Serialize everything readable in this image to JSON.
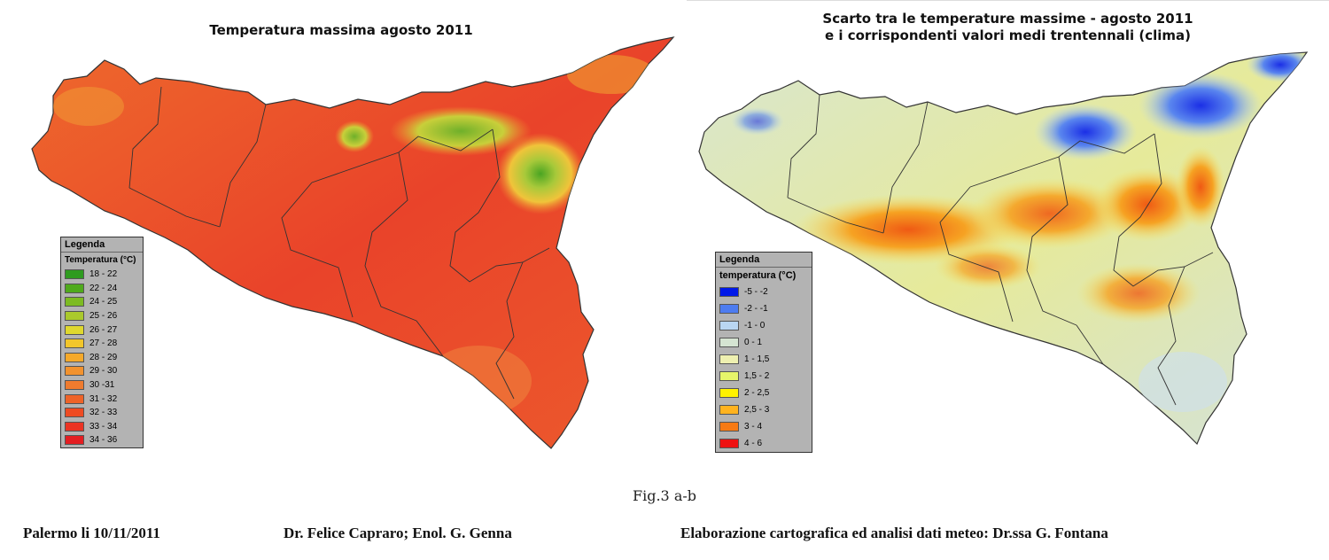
{
  "map_a": {
    "title": "Temperatura massima agosto 2011",
    "legend_title": "Legenda",
    "legend_subtitle": "Temperatura (°C)",
    "legend_items": [
      {
        "label": "18 - 22",
        "color": "#2e9b1f"
      },
      {
        "label": "22 - 24",
        "color": "#4faa1c"
      },
      {
        "label": "24 - 25",
        "color": "#7dbb22"
      },
      {
        "label": "25 - 26",
        "color": "#aac92c"
      },
      {
        "label": "26 - 27",
        "color": "#dfd82e"
      },
      {
        "label": "27 - 28",
        "color": "#f2c62b"
      },
      {
        "label": "28 - 29",
        "color": "#f5a92a"
      },
      {
        "label": "29 - 30",
        "color": "#f2922e"
      },
      {
        "label": "30 -31",
        "color": "#ef7b2e"
      },
      {
        "label": "31 - 32",
        "color": "#ee6328"
      },
      {
        "label": "32 - 33",
        "color": "#ee4b22"
      },
      {
        "label": "33 - 34",
        "color": "#eb3323"
      },
      {
        "label": "34 - 36",
        "color": "#e41e22"
      }
    ]
  },
  "map_b": {
    "title_line1": "Scarto tra le temperature massime - agosto 2011",
    "title_line2": "e i corrispondenti valori medi trentennali (clima)",
    "legend_title": "Legenda",
    "legend_subtitle": "temperatura (°C)",
    "legend_items": [
      {
        "label": "-5 - -2",
        "color": "#0018e8"
      },
      {
        "label": "-2 - -1",
        "color": "#4d7cf0"
      },
      {
        "label": "-1 - 0",
        "color": "#b9d6f2"
      },
      {
        "label": "0 - 1",
        "color": "#d5e4d2"
      },
      {
        "label": "1 - 1,5",
        "color": "#eef0b0"
      },
      {
        "label": "1,5 - 2",
        "color": "#e6f56a"
      },
      {
        "label": "2 - 2,5",
        "color": "#fff200"
      },
      {
        "label": "2,5 - 3",
        "color": "#ffb31f"
      },
      {
        "label": "3 - 4",
        "color": "#f77a13"
      },
      {
        "label": "4 - 6",
        "color": "#ee1111"
      }
    ]
  },
  "caption": "Fig.3 a-b",
  "footer": {
    "place_date": "Palermo li 10/11/2011",
    "authors": "Dr. Felice Capraro; Enol. G. Genna",
    "credit": "Elaborazione cartografica ed analisi dati meteo: Dr.ssa G. Fontana"
  }
}
